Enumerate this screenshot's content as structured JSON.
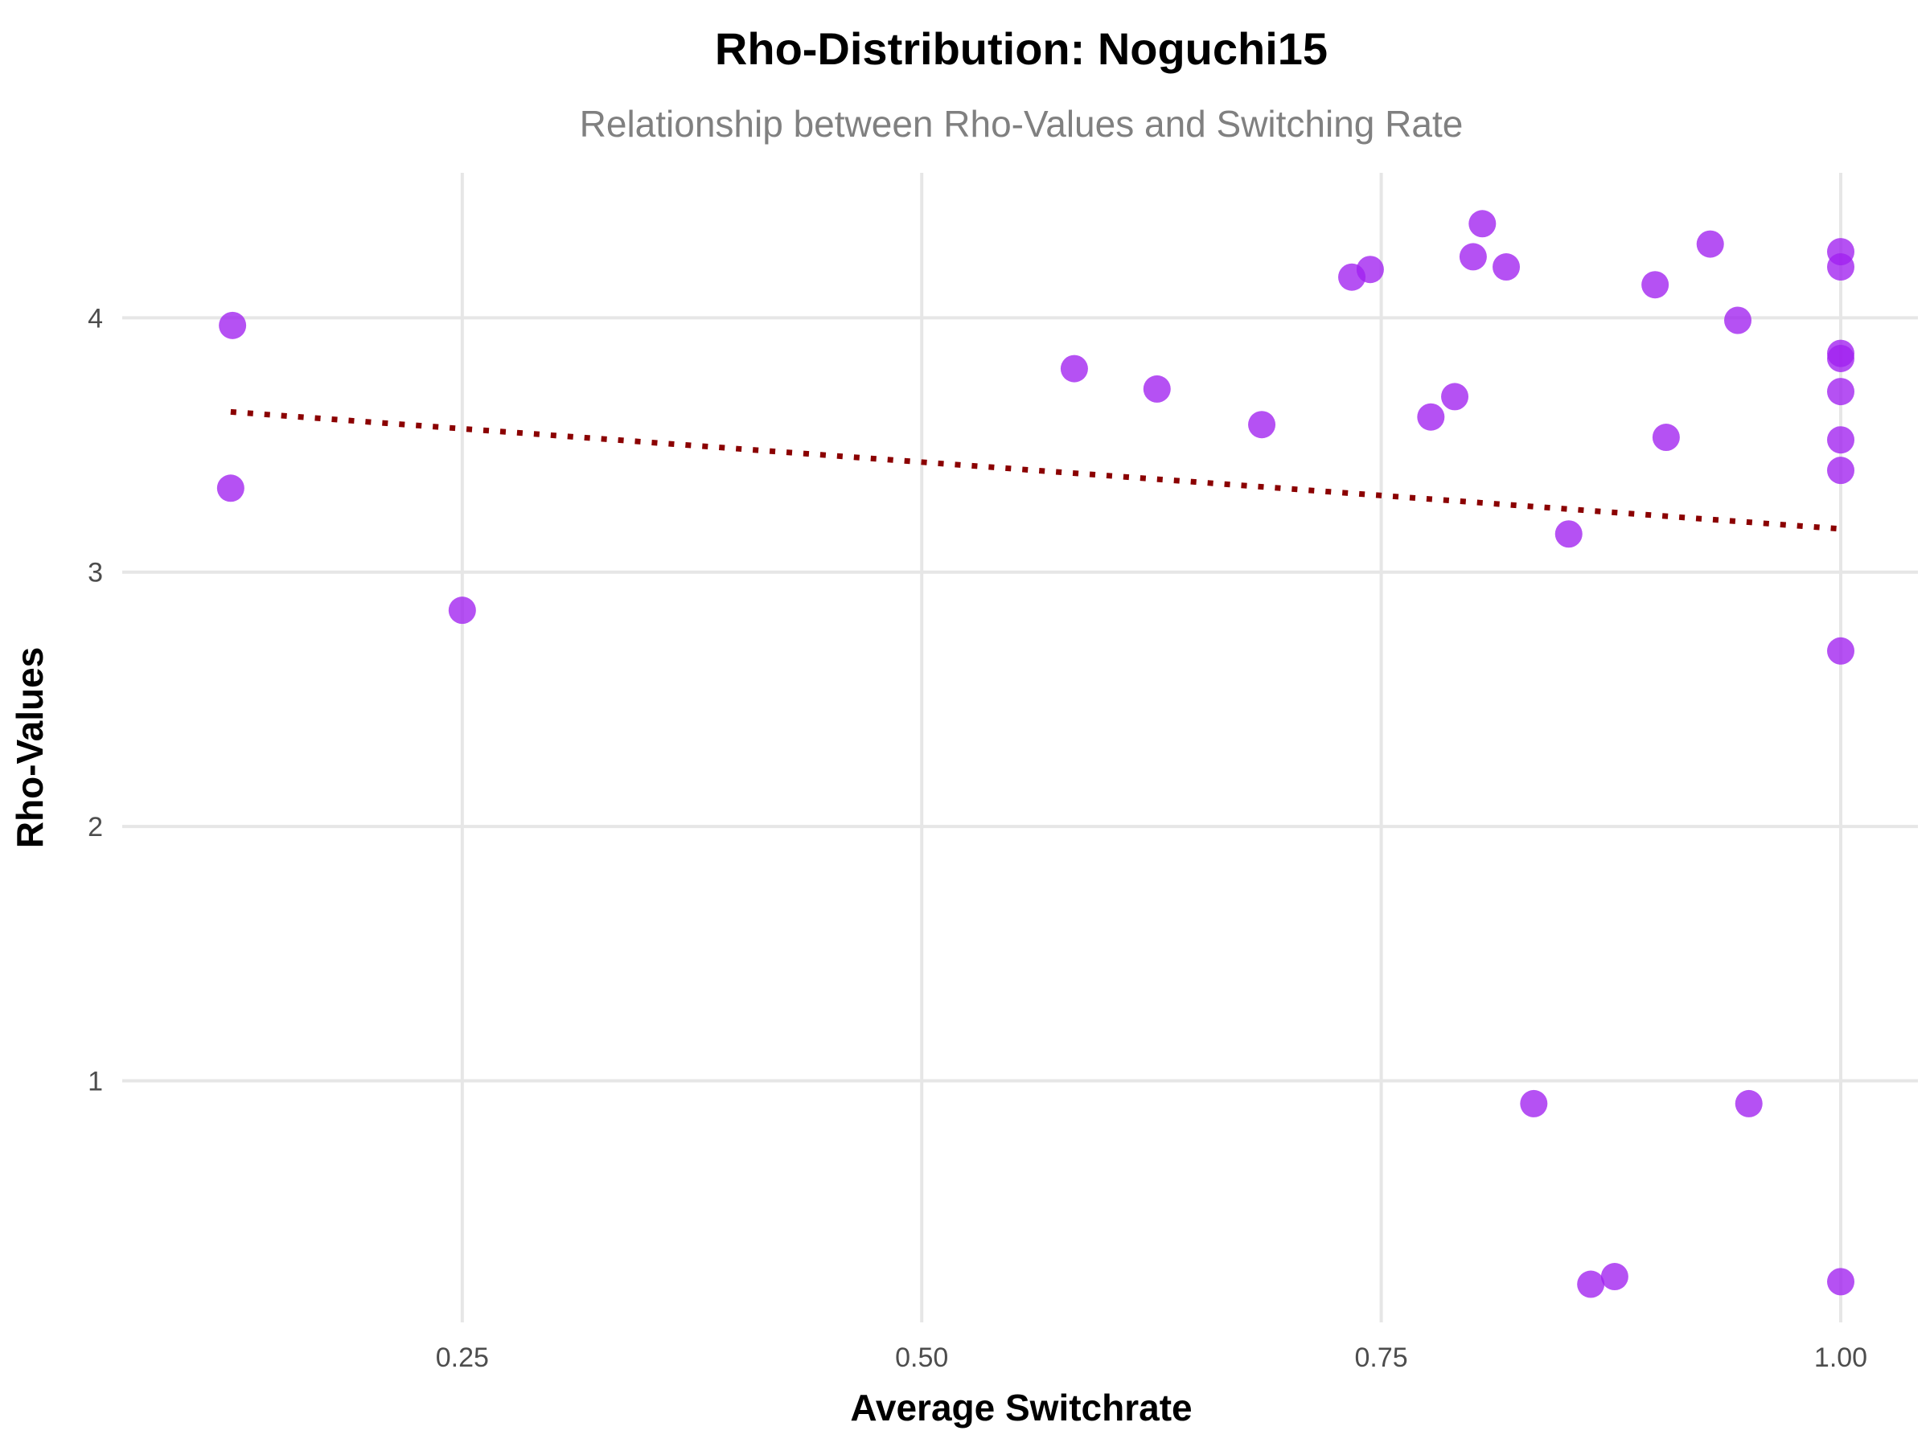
{
  "chart_data": {
    "type": "scatter",
    "title": "Rho-Distribution: Noguchi15",
    "subtitle": "Relationship between Rho-Values and Switching Rate",
    "xlabel": "Average Switchrate",
    "ylabel": "Rho-Values",
    "xlim": [
      0.065,
      1.042
    ],
    "ylim": [
      0.05,
      4.57
    ],
    "x_ticks": [
      0.25,
      0.5,
      0.75,
      1.0
    ],
    "x_tick_labels": [
      "0.25",
      "0.50",
      "0.75",
      "1.00"
    ],
    "y_ticks": [
      1,
      2,
      3,
      4
    ],
    "y_tick_labels": [
      "1",
      "2",
      "3",
      "4"
    ],
    "grid": true,
    "legend": "none",
    "point_color": "#a020f0",
    "trend_color": "#8b0000",
    "points": [
      {
        "x": 0.125,
        "y": 3.97
      },
      {
        "x": 0.124,
        "y": 3.33
      },
      {
        "x": 0.25,
        "y": 2.85
      },
      {
        "x": 0.583,
        "y": 3.8
      },
      {
        "x": 0.628,
        "y": 3.72
      },
      {
        "x": 0.685,
        "y": 3.58
      },
      {
        "x": 0.734,
        "y": 4.16
      },
      {
        "x": 0.744,
        "y": 4.19
      },
      {
        "x": 0.777,
        "y": 3.61
      },
      {
        "x": 0.79,
        "y": 3.69
      },
      {
        "x": 0.8,
        "y": 4.24
      },
      {
        "x": 0.805,
        "y": 4.37
      },
      {
        "x": 0.818,
        "y": 4.2
      },
      {
        "x": 0.833,
        "y": 0.91
      },
      {
        "x": 0.852,
        "y": 3.15
      },
      {
        "x": 0.864,
        "y": 0.2
      },
      {
        "x": 0.877,
        "y": 0.23
      },
      {
        "x": 0.899,
        "y": 4.13
      },
      {
        "x": 0.905,
        "y": 3.53
      },
      {
        "x": 0.929,
        "y": 4.29
      },
      {
        "x": 0.944,
        "y": 3.99
      },
      {
        "x": 0.95,
        "y": 0.91
      },
      {
        "x": 1.0,
        "y": 4.26
      },
      {
        "x": 1.0,
        "y": 4.2
      },
      {
        "x": 1.0,
        "y": 3.86
      },
      {
        "x": 1.0,
        "y": 3.84
      },
      {
        "x": 1.0,
        "y": 3.71
      },
      {
        "x": 1.0,
        "y": 3.52
      },
      {
        "x": 1.0,
        "y": 3.4
      },
      {
        "x": 1.0,
        "y": 2.69
      },
      {
        "x": 1.0,
        "y": 0.21
      }
    ],
    "trend_line": {
      "style": "dotted",
      "x": [
        0.124,
        1.0
      ],
      "y": [
        3.63,
        3.17
      ]
    }
  }
}
